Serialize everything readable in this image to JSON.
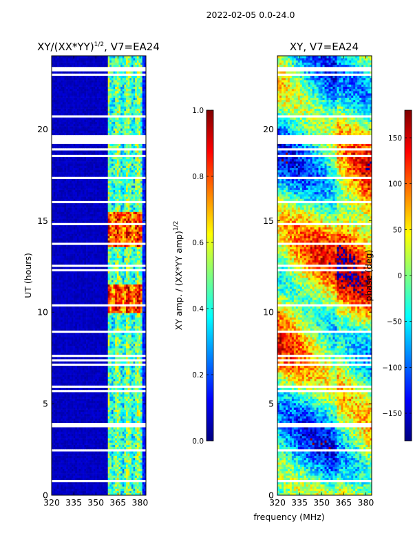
{
  "suptitle": "2022-02-05 0.0-24.0",
  "xlabel": "frequency (MHz)",
  "colormap_stops": [
    "#00007f",
    "#0000ff",
    "#007fff",
    "#00ffff",
    "#7fff7f",
    "#ffff00",
    "#ff7f00",
    "#ff0000",
    "#7f0000"
  ],
  "chart_data": [
    {
      "type": "heatmap",
      "title_main": "XY/(XX*YY)",
      "title_exp": "1/2",
      "title_suffix": ", V7=EA24",
      "ylabel": "UT (hours)",
      "xlim": [
        320,
        384
      ],
      "ylim": [
        0,
        24
      ],
      "xticks": [
        320,
        335,
        350,
        365,
        380
      ],
      "yticks": [
        0,
        5,
        10,
        15,
        20
      ],
      "colorbar": {
        "label_main": "XY amp. / (XX*YY amp)",
        "label_exp": "1/2",
        "range": [
          0.0,
          1.0
        ],
        "ticks": [
          0.0,
          0.2,
          0.4,
          0.6,
          0.8,
          1.0
        ],
        "tick_labels": [
          "0.0",
          "0.2",
          "0.4",
          "0.6",
          "0.8",
          "1.0"
        ]
      },
      "description_bands": [
        {
          "freq_range": [
            320,
            358
          ],
          "level": "low"
        },
        {
          "freq_range": [
            358,
            381
          ],
          "level": "high, variable"
        }
      ]
    },
    {
      "type": "heatmap",
      "title": "XY, V7=EA24",
      "xlim": [
        320,
        384
      ],
      "ylim": [
        0,
        24
      ],
      "xticks": [
        320,
        335,
        350,
        365,
        380
      ],
      "yticks": [
        0,
        5,
        10,
        15,
        20
      ],
      "colorbar": {
        "label": "phase (deg)",
        "range": [
          -180,
          180
        ],
        "ticks": [
          -150,
          -100,
          -50,
          0,
          50,
          100,
          150
        ],
        "tick_labels": [
          "−150",
          "−100",
          "−50",
          "0",
          "50",
          "100",
          "150"
        ]
      }
    }
  ]
}
